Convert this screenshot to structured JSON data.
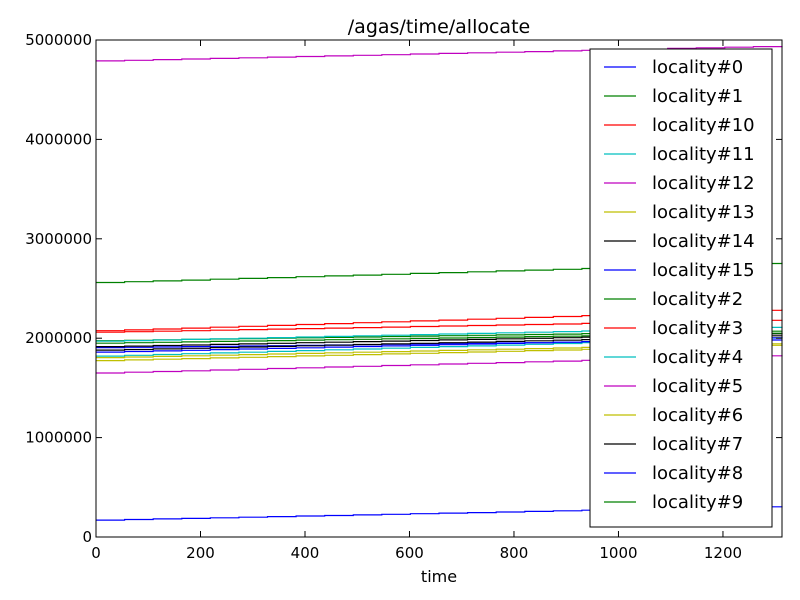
{
  "chart_data": {
    "type": "line",
    "title": "/agas/time/allocate",
    "xlabel": "time",
    "ylabel": "",
    "xlim": [
      0,
      1313
    ],
    "ylim": [
      0,
      5000000
    ],
    "xticks": [
      0,
      200,
      400,
      600,
      800,
      1000,
      1200
    ],
    "yticks": [
      0,
      1000000,
      2000000,
      3000000,
      4000000,
      5000000
    ],
    "legend": "top-right",
    "grid": false,
    "series": [
      {
        "name": "locality#0",
        "color": "#0000ff",
        "x": [
          0,
          1313
        ],
        "y": [
          1905000,
          1985000
        ]
      },
      {
        "name": "locality#1",
        "color": "#008000",
        "x": [
          0,
          1313
        ],
        "y": [
          1975000,
          2075000
        ]
      },
      {
        "name": "locality#10",
        "color": "#ff0000",
        "x": [
          0,
          1313
        ],
        "y": [
          2060000,
          2185000
        ]
      },
      {
        "name": "locality#11",
        "color": "#00bfbf",
        "x": [
          0,
          1313
        ],
        "y": [
          1820000,
          2010000
        ]
      },
      {
        "name": "locality#12",
        "color": "#bf00bf",
        "x": [
          0,
          1313
        ],
        "y": [
          4790000,
          4940000
        ]
      },
      {
        "name": "locality#13",
        "color": "#bfbf00",
        "x": [
          0,
          1313
        ],
        "y": [
          1775000,
          1935000
        ]
      },
      {
        "name": "locality#14",
        "color": "#000000",
        "x": [
          0,
          1313
        ],
        "y": [
          1880000,
          2030000
        ]
      },
      {
        "name": "locality#15",
        "color": "#0000ff",
        "x": [
          0,
          1313
        ],
        "y": [
          1860000,
          2010000
        ]
      },
      {
        "name": "locality#2",
        "color": "#008000",
        "x": [
          0,
          1313
        ],
        "y": [
          2560000,
          2760000
        ]
      },
      {
        "name": "locality#3",
        "color": "#ff0000",
        "x": [
          0,
          1313
        ],
        "y": [
          2075000,
          2290000
        ]
      },
      {
        "name": "locality#4",
        "color": "#00bfbf",
        "x": [
          0,
          1313
        ],
        "y": [
          1970000,
          2115000
        ]
      },
      {
        "name": "locality#5",
        "color": "#bf00bf",
        "x": [
          0,
          1313
        ],
        "y": [
          1650000,
          1830000
        ]
      },
      {
        "name": "locality#6",
        "color": "#bfbf00",
        "x": [
          0,
          1313
        ],
        "y": [
          1805000,
          1950000
        ]
      },
      {
        "name": "locality#7",
        "color": "#000000",
        "x": [
          0,
          1313
        ],
        "y": [
          1915000,
          2050000
        ]
      },
      {
        "name": "locality#8",
        "color": "#0000ff",
        "x": [
          0,
          1313
        ],
        "y": [
          170000,
          310000
        ]
      },
      {
        "name": "locality#9",
        "color": "#008000",
        "x": [
          0,
          1313
        ],
        "y": [
          1950000,
          2055000
        ]
      }
    ]
  }
}
